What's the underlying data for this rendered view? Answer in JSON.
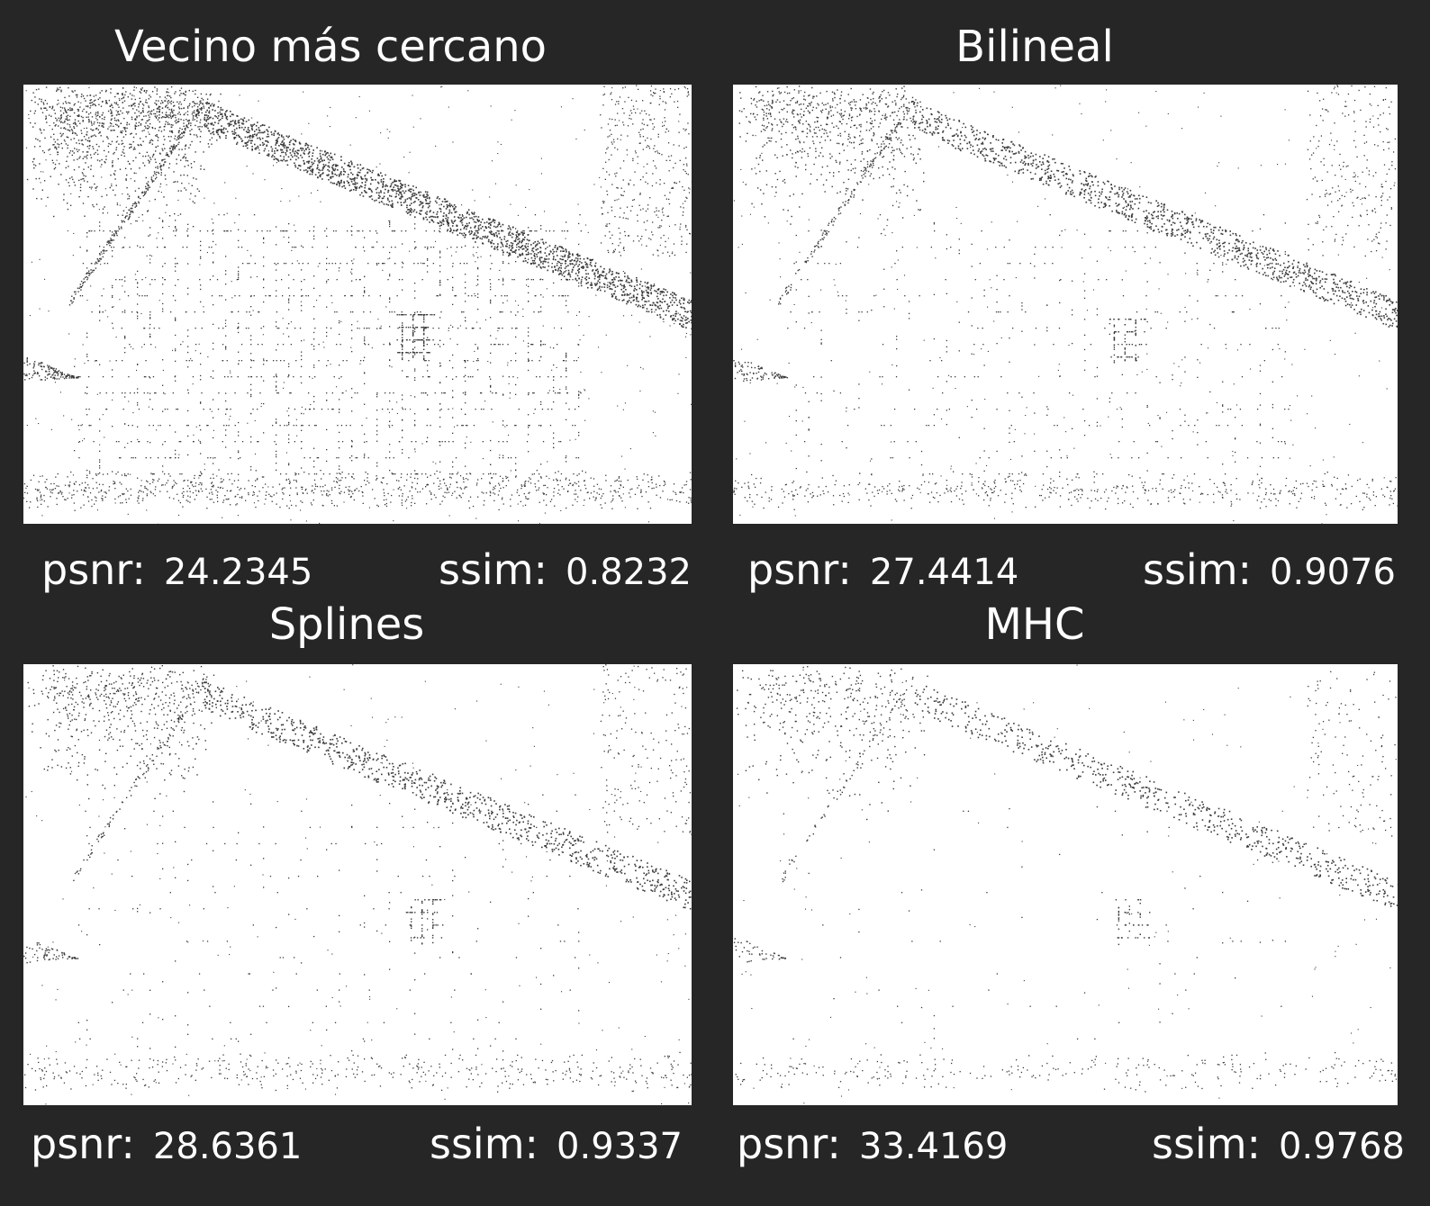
{
  "panels": [
    {
      "title": "Vecino más cercano",
      "psnr_label": "psnr:",
      "psnr_value": "24.2345",
      "ssim_label": "ssim:",
      "ssim_value": "0.8232",
      "edge_density": 1.0
    },
    {
      "title": "Bilineal",
      "psnr_label": "psnr:",
      "psnr_value": "27.4414",
      "ssim_label": "ssim:",
      "ssim_value": "0.9076",
      "edge_density": 0.55
    },
    {
      "title": "Splines",
      "psnr_label": "psnr:",
      "psnr_value": "28.6361",
      "ssim_label": "ssim:",
      "ssim_value": "0.9337",
      "edge_density": 0.4
    },
    {
      "title": "MHC",
      "psnr_label": "psnr:",
      "psnr_value": "33.4169",
      "ssim_label": "ssim:",
      "ssim_value": "0.9768",
      "edge_density": 0.22
    }
  ],
  "colors": {
    "background": "#262626",
    "text": "#ffffff",
    "image_bg": "#ffffff",
    "edge_dots": "#3a3a3a"
  }
}
